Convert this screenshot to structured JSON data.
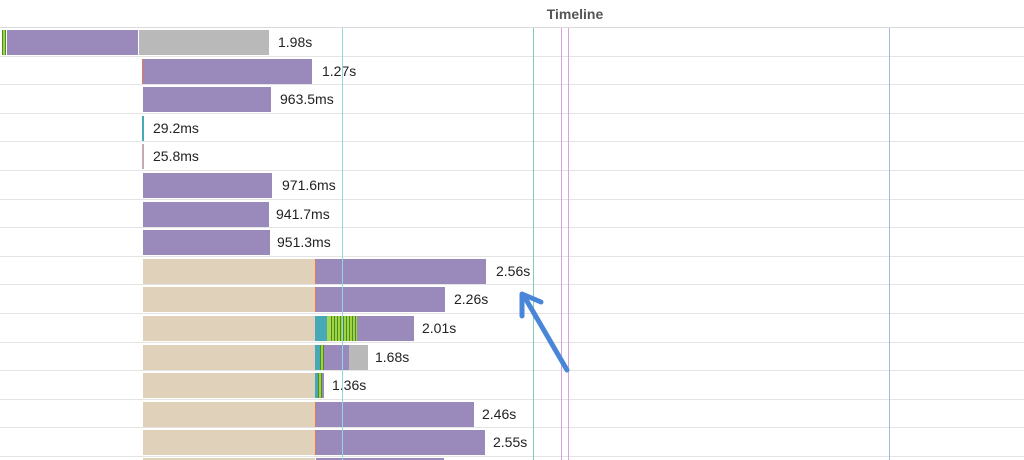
{
  "header": {
    "title": "Timeline"
  },
  "colors": {
    "waiting": "#9a89bb",
    "blocked": "#dfd1ba",
    "queued": "#b9b9b9",
    "connect": "#47a9b5",
    "ssl": "#a6d84a",
    "dns": "#e07950",
    "marker_cyan": "#8fd7e2",
    "marker_teal": "#7fcdb7",
    "marker_pink": "#dda2dd",
    "marker_blue": "#9fbbe4",
    "arrow": "#4a86d8"
  },
  "rows": [
    {
      "duration": "1.98s"
    },
    {
      "duration": "1.27s"
    },
    {
      "duration": "963.5ms"
    },
    {
      "duration": "29.2ms"
    },
    {
      "duration": "25.8ms"
    },
    {
      "duration": "971.6ms"
    },
    {
      "duration": "941.7ms"
    },
    {
      "duration": "951.3ms"
    },
    {
      "duration": "2.56s"
    },
    {
      "duration": "2.26s"
    },
    {
      "duration": "2.01s"
    },
    {
      "duration": "1.68s"
    },
    {
      "duration": "1.36s"
    },
    {
      "duration": "2.46s"
    },
    {
      "duration": "2.55s"
    }
  ]
}
